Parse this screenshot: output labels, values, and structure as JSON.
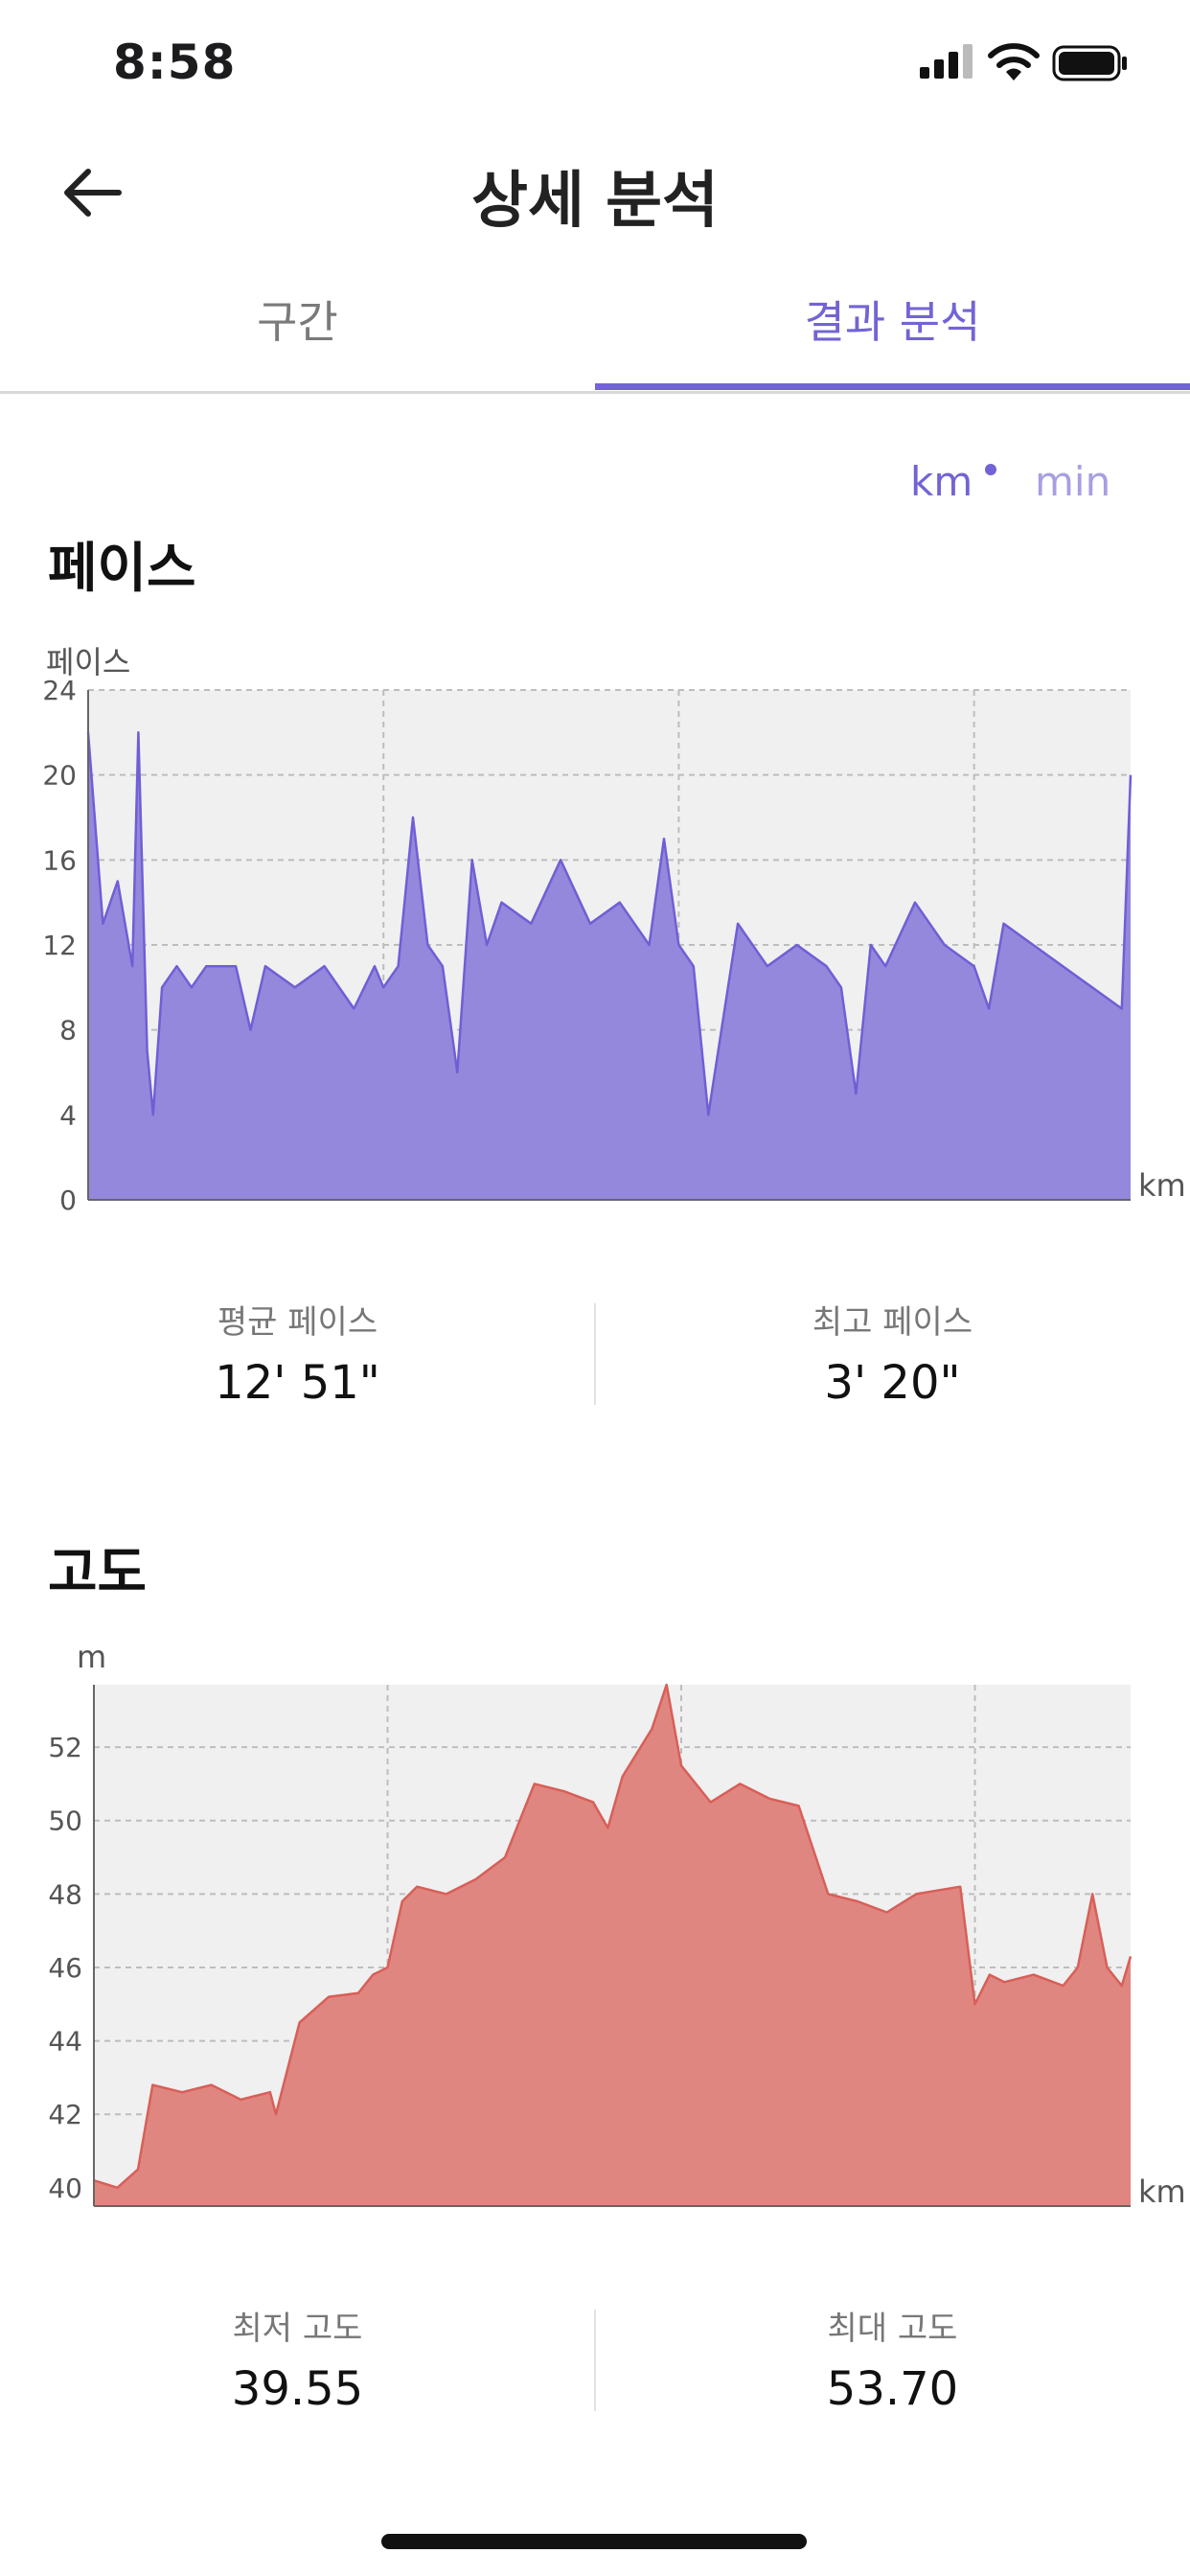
{
  "status_bar": {
    "time": "8:58"
  },
  "header": {
    "title": "상세 분석"
  },
  "tabs": [
    {
      "label": "구간"
    },
    {
      "label": "결과 분석"
    }
  ],
  "unit_toggle": {
    "options": [
      "km",
      "min"
    ],
    "selected": "km"
  },
  "pace_section": {
    "title": "페이스",
    "stats": [
      {
        "label": "평균 페이스",
        "value": "12' 51\""
      },
      {
        "label": "최고 페이스",
        "value": "3' 20\""
      }
    ]
  },
  "altitude_section": {
    "title": "고도",
    "stats": [
      {
        "label": "최저 고도",
        "value": "39.55"
      },
      {
        "label": "최대 고도",
        "value": "53.70"
      }
    ]
  },
  "colors": {
    "accent": "#7264d4",
    "pace_fill": "#9488dc",
    "pace_line": "#6f5fd6",
    "altitude_fill": "#e08680",
    "altitude_line": "#d85f58",
    "plot_bg": "#f0f0f0"
  },
  "chart_data": [
    {
      "type": "area",
      "ylabel": "페이스",
      "xlabel": "km",
      "xlim": [
        0,
        3.53
      ],
      "ylim": [
        0,
        24
      ],
      "yticks": [
        0,
        4,
        8,
        12,
        16,
        20,
        24
      ],
      "xticks": [
        1,
        2,
        3
      ],
      "grid": true,
      "series": [
        {
          "x": [
            0,
            0.05,
            0.1,
            0.15,
            0.17,
            0.2,
            0.22,
            0.25,
            0.3,
            0.35,
            0.4,
            0.5,
            0.55,
            0.6,
            0.7,
            0.8,
            0.9,
            0.97,
            1.0,
            1.05,
            1.1,
            1.15,
            1.2,
            1.25,
            1.3,
            1.35,
            1.4,
            1.5,
            1.6,
            1.7,
            1.8,
            1.9,
            1.95,
            2.0,
            2.05,
            2.1,
            2.2,
            2.3,
            2.4,
            2.5,
            2.55,
            2.6,
            2.65,
            2.7,
            2.8,
            2.9,
            3.0,
            3.05,
            3.1,
            3.2,
            3.3,
            3.4,
            3.5,
            3.53
          ],
          "y": [
            22,
            13,
            15,
            11,
            22,
            7,
            4,
            10,
            11,
            10,
            11,
            11,
            8,
            11,
            10,
            11,
            9,
            11,
            10,
            11,
            18,
            12,
            11,
            6,
            16,
            12,
            14,
            13,
            16,
            13,
            14,
            12,
            17,
            12,
            11,
            4,
            13,
            11,
            12,
            11,
            10,
            5,
            12,
            11,
            14,
            12,
            11,
            9,
            13,
            12,
            11,
            10,
            9,
            20
          ]
        }
      ]
    },
    {
      "type": "area",
      "ylabel": "m",
      "xlabel": "km",
      "xlim": [
        0,
        3.53
      ],
      "ylim": [
        39.5,
        53.7
      ],
      "yticks": [
        40,
        42,
        44,
        46,
        48,
        50,
        52
      ],
      "xticks": [
        1,
        2,
        3
      ],
      "grid": true,
      "series": [
        {
          "x": [
            0,
            0.08,
            0.15,
            0.2,
            0.3,
            0.4,
            0.5,
            0.6,
            0.62,
            0.7,
            0.8,
            0.9,
            0.95,
            1.0,
            1.05,
            1.1,
            1.2,
            1.3,
            1.4,
            1.45,
            1.5,
            1.6,
            1.7,
            1.75,
            1.8,
            1.9,
            1.95,
            2.0,
            2.1,
            2.2,
            2.3,
            2.4,
            2.5,
            2.6,
            2.7,
            2.8,
            2.95,
            3.0,
            3.05,
            3.1,
            3.2,
            3.3,
            3.35,
            3.4,
            3.45,
            3.5,
            3.53
          ],
          "y": [
            40.2,
            40.0,
            40.5,
            42.8,
            42.6,
            42.8,
            42.4,
            42.6,
            42.0,
            44.5,
            45.2,
            45.3,
            45.8,
            46.0,
            47.8,
            48.2,
            48.0,
            48.4,
            49.0,
            50.0,
            51.0,
            50.8,
            50.5,
            49.8,
            51.2,
            52.5,
            53.7,
            51.5,
            50.5,
            51.0,
            50.6,
            50.4,
            48.0,
            47.8,
            47.5,
            48.0,
            48.2,
            45.0,
            45.8,
            45.6,
            45.8,
            45.5,
            46.0,
            48.0,
            46.0,
            45.5,
            46.3
          ]
        }
      ]
    }
  ]
}
